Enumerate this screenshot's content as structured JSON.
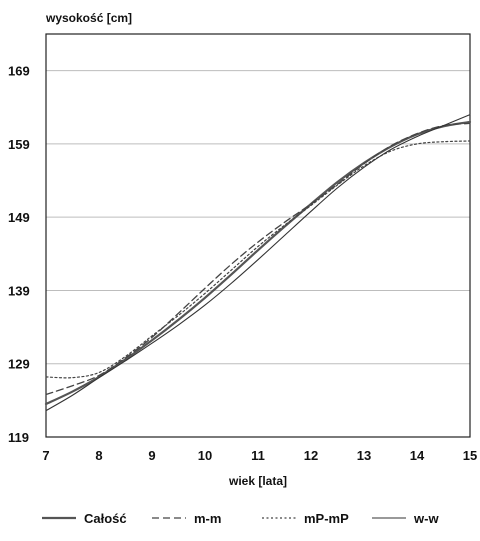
{
  "chart_data": {
    "type": "line",
    "title": "",
    "ylabel": "wysokość [cm]",
    "xlabel": "wiek [lata]",
    "xlim": [
      7,
      15
    ],
    "ylim": [
      119,
      174
    ],
    "xticks": [
      7,
      8,
      9,
      10,
      11,
      12,
      13,
      14,
      15
    ],
    "yticks": [
      119,
      129,
      139,
      149,
      159,
      169
    ],
    "grid": "horizontal",
    "legend_position": "bottom",
    "series": [
      {
        "name": "Całość",
        "style": "solid-thick",
        "points": [
          [
            7,
            123.5
          ],
          [
            7.5,
            125.2
          ],
          [
            8,
            127.2
          ],
          [
            8.5,
            129.6
          ],
          [
            9,
            132.2
          ],
          [
            9.5,
            135
          ],
          [
            10,
            138
          ],
          [
            10.5,
            141.2
          ],
          [
            11,
            144.5
          ],
          [
            11.5,
            147.7
          ],
          [
            12,
            150.8
          ],
          [
            12.5,
            153.8
          ],
          [
            13,
            156.4
          ],
          [
            13.5,
            158.6
          ],
          [
            14,
            160.3
          ],
          [
            14.5,
            161.4
          ],
          [
            15,
            162
          ]
        ]
      },
      {
        "name": "m-m",
        "style": "dashed",
        "points": [
          [
            7,
            124.8
          ],
          [
            7.5,
            126
          ],
          [
            8,
            127.4
          ],
          [
            8.5,
            129.8
          ],
          [
            9,
            132.6
          ],
          [
            9.5,
            135.9
          ],
          [
            10,
            139.3
          ],
          [
            10.5,
            142.6
          ],
          [
            11,
            145.6
          ],
          [
            11.5,
            148.3
          ],
          [
            12,
            150.8
          ],
          [
            12.5,
            153.5
          ],
          [
            13,
            156.3
          ],
          [
            13.5,
            158.7
          ],
          [
            14,
            160.4
          ],
          [
            14.5,
            161.5
          ],
          [
            15,
            161.8
          ]
        ]
      },
      {
        "name": "mP-mP",
        "style": "dotted",
        "points": [
          [
            7,
            127.2
          ],
          [
            7.5,
            127.1
          ],
          [
            8,
            127.8
          ],
          [
            8.5,
            130
          ],
          [
            9,
            132.8
          ],
          [
            9.5,
            135.6
          ],
          [
            10,
            138.6
          ],
          [
            10.5,
            141.8
          ],
          [
            11,
            145
          ],
          [
            11.5,
            147.9
          ],
          [
            12,
            150.6
          ],
          [
            12.5,
            153.4
          ],
          [
            13,
            156
          ],
          [
            13.5,
            158
          ],
          [
            14,
            159
          ],
          [
            14.5,
            159.3
          ],
          [
            15,
            159.4
          ]
        ]
      },
      {
        "name": "w-w",
        "style": "solid-thin",
        "points": [
          [
            7,
            122.6
          ],
          [
            7.5,
            124.7
          ],
          [
            8,
            127.1
          ],
          [
            8.5,
            129.4
          ],
          [
            9,
            131.8
          ],
          [
            9.5,
            134.3
          ],
          [
            10,
            137
          ],
          [
            10.5,
            140
          ],
          [
            11,
            143.2
          ],
          [
            11.5,
            146.5
          ],
          [
            12,
            149.8
          ],
          [
            12.5,
            153
          ],
          [
            13,
            155.8
          ],
          [
            13.5,
            158.2
          ],
          [
            14,
            160
          ],
          [
            14.5,
            161.5
          ],
          [
            15,
            163
          ]
        ]
      }
    ]
  }
}
